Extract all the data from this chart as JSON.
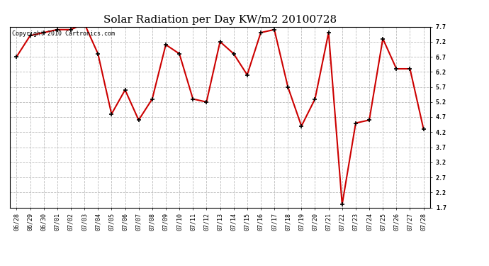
{
  "title": "Solar Radiation per Day KW/m2 20100728",
  "copyright_text": "Copyright 2010 Cartronics.com",
  "x_labels": [
    "06/28",
    "06/29",
    "06/30",
    "07/01",
    "07/02",
    "07/03",
    "07/04",
    "07/05",
    "07/06",
    "07/07",
    "07/08",
    "07/09",
    "07/10",
    "07/11",
    "07/12",
    "07/13",
    "07/14",
    "07/15",
    "07/16",
    "07/17",
    "07/18",
    "07/19",
    "07/20",
    "07/21",
    "07/22",
    "07/23",
    "07/24",
    "07/25",
    "07/26",
    "07/27",
    "07/28"
  ],
  "y_values": [
    6.7,
    7.4,
    7.5,
    7.6,
    7.6,
    7.8,
    6.8,
    4.8,
    5.6,
    4.6,
    5.3,
    7.1,
    6.8,
    5.3,
    5.2,
    7.2,
    6.8,
    6.1,
    7.5,
    7.6,
    5.7,
    4.4,
    5.3,
    7.5,
    1.8,
    4.5,
    4.6,
    7.3,
    6.3,
    6.3,
    4.3
  ],
  "ylim": [
    1.7,
    7.7
  ],
  "yticks": [
    1.7,
    2.2,
    2.7,
    3.2,
    3.7,
    4.2,
    4.7,
    5.2,
    5.7,
    6.2,
    6.7,
    7.2,
    7.7
  ],
  "line_color": "#cc0000",
  "marker": "+",
  "marker_color": "#000000",
  "marker_size": 5,
  "marker_linewidth": 1.2,
  "line_width": 1.5,
  "grid_color": "#bbbbbb",
  "grid_linestyle": "--",
  "bg_color": "#ffffff",
  "title_fontsize": 11,
  "tick_fontsize": 6,
  "copyright_fontsize": 6,
  "ylabel_right": true
}
